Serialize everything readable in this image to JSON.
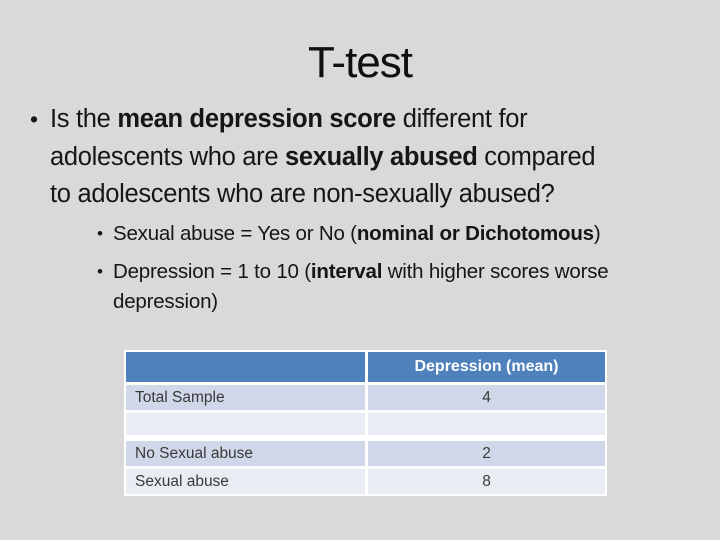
{
  "slide": {
    "title": "T-test",
    "bullet_marker": "•"
  },
  "main_bullet": {
    "lines": [
      {
        "segs": [
          {
            "t": "Is the ",
            "b": 0
          },
          {
            "t": "mean depression score",
            "b": 1
          },
          {
            "t": " different for",
            "b": 0
          }
        ]
      },
      {
        "segs": [
          {
            "t": "adolescents who are ",
            "b": 0
          },
          {
            "t": "sexually abused",
            "b": 1
          },
          {
            "t": " compared",
            "b": 0
          }
        ]
      },
      {
        "segs": [
          {
            "t": "to adolescents who are non-sexually abused?",
            "b": 0
          }
        ]
      }
    ]
  },
  "sub_bullets": [
    {
      "lines": [
        {
          "segs": [
            {
              "t": "Sexual abuse = Yes or No (",
              "b": 0
            },
            {
              "t": "nominal or Dichotomous",
              "b": 1
            },
            {
              "t": ")",
              "b": 0
            }
          ]
        }
      ]
    },
    {
      "lines": [
        {
          "segs": [
            {
              "t": "Depression = 1 to 10 (",
              "b": 0
            },
            {
              "t": "interval",
              "b": 1
            },
            {
              "t": " with higher scores worse",
              "b": 0
            }
          ]
        },
        {
          "segs": [
            {
              "t": "depression)",
              "b": 0
            }
          ]
        }
      ]
    }
  ],
  "table": {
    "header": {
      "col1": "",
      "col2": "Depression (mean)"
    },
    "rows": [
      {
        "label": "Total Sample",
        "value": "4"
      },
      {
        "label": "",
        "value": ""
      },
      {
        "label": "No Sexual abuse",
        "value": "2"
      },
      {
        "label": "Sexual abuse",
        "value": "8"
      }
    ]
  },
  "colors": {
    "background": "#D9D9D9",
    "body_text": "#161616",
    "table_header_bg": "#4F81BD",
    "table_header_text": "#FFFFFF",
    "table_row_dark": "#CFD7E8",
    "table_row_light": "#E9EDF3",
    "table_border": "#FFFFFF"
  }
}
